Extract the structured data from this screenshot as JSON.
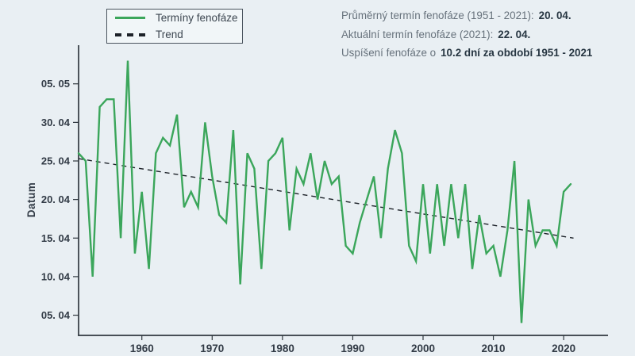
{
  "page": {
    "background_color": "#e9eff3",
    "accent_green": "#3ba65b",
    "text_gray": "#67727c",
    "text_dark": "#273642"
  },
  "legend": {
    "items": [
      {
        "label": "Termíny fenofáze",
        "style": "solid-line",
        "color": "#3ba65b"
      },
      {
        "label": "Trend",
        "style": "dashed-line",
        "color": "#1d2229"
      }
    ]
  },
  "annotations": [
    {
      "normal": "Průměrný termín fenofáze (1951 - 2021):",
      "bold": "20. 04."
    },
    {
      "normal": "Aktuální termín fenofáze (2021):",
      "bold": "22. 04."
    },
    {
      "normal": "Uspíšení fenofáze o",
      "bold": "10.2 dní za období 1951 - 2021"
    }
  ],
  "chart_data": {
    "type": "line",
    "title": "",
    "xlabel": "",
    "ylabel": "Datum",
    "grid": false,
    "legend_position": "top-left",
    "value_encoding": "days from 31 March (5 = 05.04, 35 = 05.05)",
    "x_range": [
      1951,
      2021
    ],
    "ylim": [
      3,
      39
    ],
    "x_ticks": [
      {
        "value": 1960,
        "label": "1960"
      },
      {
        "value": 1970,
        "label": "1970"
      },
      {
        "value": 1980,
        "label": "1980"
      },
      {
        "value": 1990,
        "label": "1990"
      },
      {
        "value": 2000,
        "label": "2000"
      },
      {
        "value": 2010,
        "label": "2010"
      },
      {
        "value": 2020,
        "label": "2020"
      }
    ],
    "y_ticks": [
      {
        "value": 5,
        "label": "05. 04"
      },
      {
        "value": 10,
        "label": "10. 04"
      },
      {
        "value": 15,
        "label": "15. 04"
      },
      {
        "value": 20,
        "label": "20. 04"
      },
      {
        "value": 25,
        "label": "25. 04"
      },
      {
        "value": 30,
        "label": "30. 04"
      },
      {
        "value": 35,
        "label": "05. 05"
      }
    ],
    "series": [
      {
        "name": "Termíny fenofáze",
        "color": "#3ba65b",
        "x_start": 1951,
        "values": [
          26,
          25,
          10,
          32,
          33,
          33,
          15,
          38,
          13,
          21,
          11,
          26,
          28,
          27,
          31,
          19,
          21,
          19,
          30,
          23,
          18,
          17,
          29,
          9,
          26,
          24,
          11,
          25,
          26,
          28,
          16,
          24,
          22,
          26,
          20,
          25,
          22,
          23,
          14,
          13,
          17,
          20,
          23,
          15,
          24,
          29,
          26,
          14,
          12,
          22,
          13,
          22,
          14,
          22,
          15,
          22,
          11,
          18,
          13,
          14,
          10,
          16,
          25,
          4,
          20,
          14,
          16,
          16,
          14,
          21,
          22
        ]
      }
    ],
    "trend": {
      "name": "Trend",
      "color": "#1d2229",
      "start": {
        "year": 1951,
        "value": 25.3
      },
      "end": {
        "year": 2021.4,
        "value": 15.0
      }
    }
  }
}
